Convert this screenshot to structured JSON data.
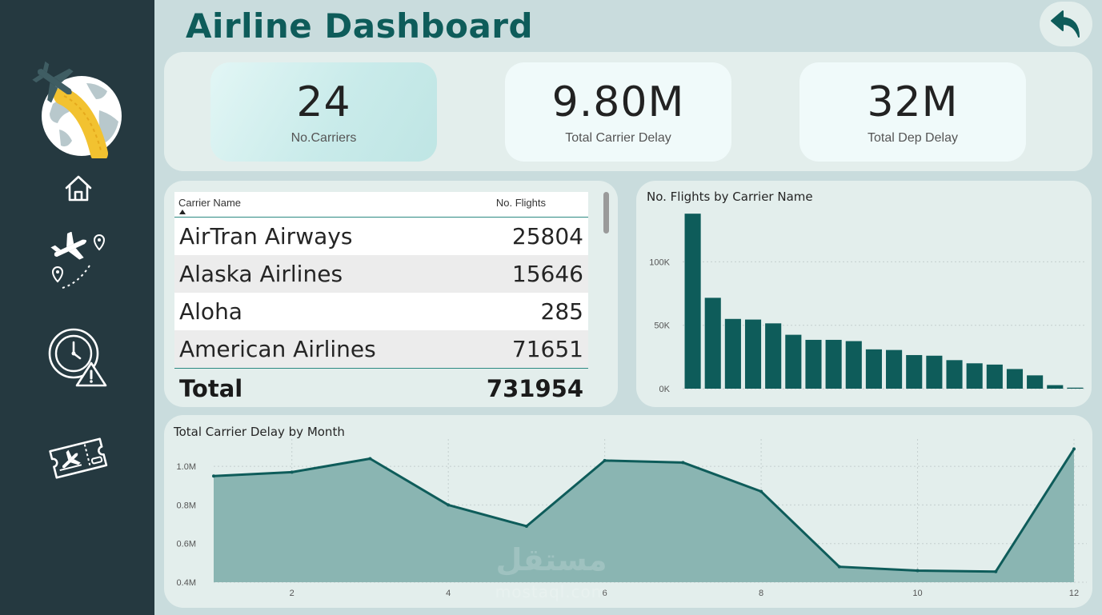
{
  "header": {
    "title": "Airline Dashboard"
  },
  "sidebar": {
    "icons": [
      "globe-plane-logo",
      "home-icon",
      "flight-route-icon",
      "clock-alert-icon",
      "boarding-ticket-icon"
    ]
  },
  "kpis": [
    {
      "value": "24",
      "label": "No.Carriers"
    },
    {
      "value": "9.80M",
      "label": "Total Carrier Delay"
    },
    {
      "value": "32M",
      "label": "Total Dep Delay"
    }
  ],
  "table": {
    "headers": [
      "Carrier Name",
      "No. Flights"
    ],
    "rows": [
      {
        "name": "AirTran Airways",
        "flights": "25804"
      },
      {
        "name": "Alaska Airlines",
        "flights": "15646"
      },
      {
        "name": "Aloha",
        "flights": "285"
      },
      {
        "name": "American Airlines",
        "flights": "71651"
      }
    ],
    "total_label": "Total",
    "total_value": "731954"
  },
  "chart_data": [
    {
      "type": "bar",
      "title": "No. Flights by Carrier Name",
      "xlabel": "",
      "ylabel": "",
      "ylim": [
        0,
        140000
      ],
      "yticks": [
        0,
        50000,
        100000
      ],
      "ytick_labels": [
        "0K",
        "50K",
        "100K"
      ],
      "grid": true,
      "color": "#0e5c5a",
      "values": [
        138000,
        71651,
        55000,
        54500,
        51500,
        42500,
        38500,
        38500,
        37500,
        31000,
        30500,
        26500,
        26000,
        22500,
        20000,
        19000,
        15500,
        10500,
        2800,
        800
      ]
    },
    {
      "type": "area",
      "title": "Total Carrier Delay by Month",
      "xlabel": "",
      "ylabel": "",
      "xlim": [
        1,
        12
      ],
      "ylim": [
        0.4,
        1.1
      ],
      "yticks": [
        0.4,
        0.6,
        0.8,
        1.0
      ],
      "ytick_labels": [
        "0.4M",
        "0.6M",
        "0.8M",
        "1.0M"
      ],
      "xticks": [
        2,
        4,
        6,
        8,
        10,
        12
      ],
      "grid": true,
      "line_color": "#0e5c5a",
      "fill_color": "#8ab5b2",
      "x": [
        1,
        2,
        3,
        4,
        5,
        6,
        7,
        8,
        9,
        10,
        11,
        12
      ],
      "values": [
        0.95,
        0.97,
        1.04,
        0.8,
        0.69,
        1.03,
        1.02,
        0.87,
        0.48,
        0.46,
        0.455,
        1.09
      ]
    }
  ],
  "watermark": {
    "arabic": "مستقل",
    "latin": "mostaql.com"
  }
}
